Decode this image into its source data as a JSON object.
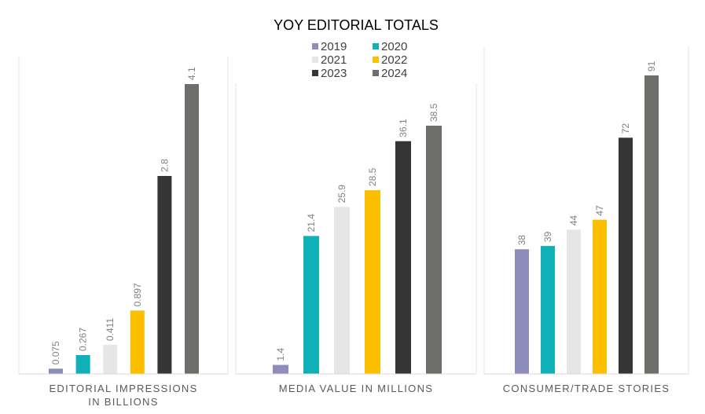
{
  "colors": {
    "2019": "#8e8cb8",
    "2020": "#0fb0b8",
    "2021": "#e6e6e6",
    "2022": "#fbbf00",
    "2023": "#353535",
    "2024": "#6e6e6b"
  },
  "chart_data": {
    "type": "bar",
    "title": "YOY EDITORIAL TOTALS",
    "legend": [
      "2019",
      "2020",
      "2021",
      "2022",
      "2023",
      "2024"
    ],
    "legend_position": "top-center",
    "grid": false,
    "panels": [
      {
        "xlabel": [
          "EDITORIAL IMPRESSIONS",
          "IN BILLIONS"
        ],
        "ylim": [
          0,
          4.1
        ],
        "series": [
          {
            "name": "2019",
            "value": 0.075,
            "label": "0.075"
          },
          {
            "name": "2020",
            "value": 0.267,
            "label": "0.267"
          },
          {
            "name": "2021",
            "value": 0.411,
            "label": "0.411"
          },
          {
            "name": "2022",
            "value": 0.897,
            "label": "0.897"
          },
          {
            "name": "2023",
            "value": 2.8,
            "label": "2.8"
          },
          {
            "name": "2024",
            "value": 4.1,
            "label": "4.1"
          }
        ]
      },
      {
        "xlabel": [
          "MEDIA VALUE IN MILLIONS"
        ],
        "ylim": [
          0,
          38.5
        ],
        "series": [
          {
            "name": "2019",
            "value": 1.4,
            "label": "1.4"
          },
          {
            "name": "2020",
            "value": 21.4,
            "label": "21.4"
          },
          {
            "name": "2021",
            "value": 25.9,
            "label": "25.9"
          },
          {
            "name": "2022",
            "value": 28.5,
            "label": "28.5"
          },
          {
            "name": "2023",
            "value": 36.1,
            "label": "36.1"
          },
          {
            "name": "2024",
            "value": 38.5,
            "label": "38.5"
          }
        ]
      },
      {
        "xlabel": [
          "CONSUMER/TRADE STORIES"
        ],
        "ylim": [
          0,
          91
        ],
        "series": [
          {
            "name": "2019",
            "value": 38,
            "label": "38"
          },
          {
            "name": "2020",
            "value": 39,
            "label": "39"
          },
          {
            "name": "2021",
            "value": 44,
            "label": "44"
          },
          {
            "name": "2022",
            "value": 47,
            "label": "47"
          },
          {
            "name": "2023",
            "value": 72,
            "label": "72"
          },
          {
            "name": "2024",
            "value": 91,
            "label": "91"
          }
        ]
      }
    ]
  }
}
